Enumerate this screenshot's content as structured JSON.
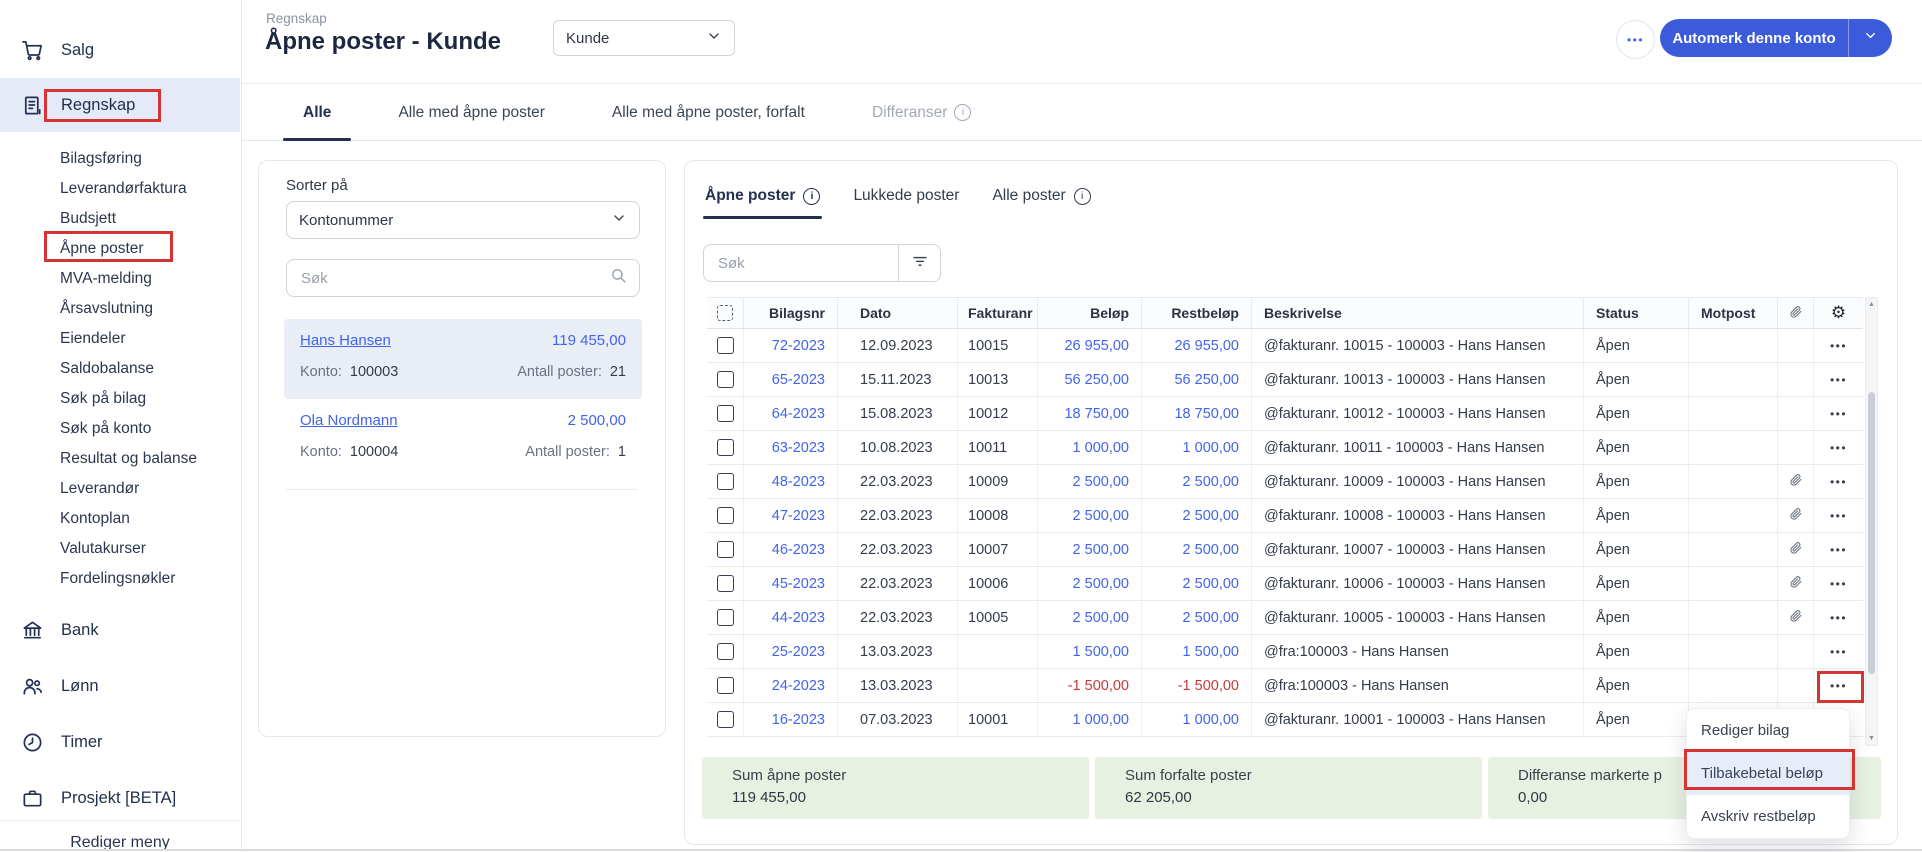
{
  "colors": {
    "accent": "#4263eb",
    "primary_button": "#3b5bdb",
    "navy": "#24304f",
    "annotation": "#d63333",
    "negative": "#c43b3b",
    "summary_bg": "#e7f1e2",
    "selected_bg": "#e9edf6",
    "active_nav_bg": "#e5eaf8",
    "menu_highlight": "#e7ecf9"
  },
  "icons": {
    "dots": "•••",
    "gear": "⚙",
    "up": "▲",
    "down": "▼",
    "info": "i"
  },
  "sidebar": {
    "items": [
      {
        "label": "Salg",
        "icon": "cart",
        "type": "main"
      },
      {
        "label": "Regnskap",
        "icon": "ledger",
        "type": "main",
        "active": true
      },
      {
        "label": "Bilagsføring",
        "type": "sub"
      },
      {
        "label": "Leverandørfaktura",
        "type": "sub"
      },
      {
        "label": "Budsjett",
        "type": "sub"
      },
      {
        "label": "Åpne poster",
        "type": "sub"
      },
      {
        "label": "MVA-melding",
        "type": "sub"
      },
      {
        "label": "Årsavslutning",
        "type": "sub"
      },
      {
        "label": "Eiendeler",
        "type": "sub"
      },
      {
        "label": "Saldobalanse",
        "type": "sub"
      },
      {
        "label": "Søk på bilag",
        "type": "sub"
      },
      {
        "label": "Søk på konto",
        "type": "sub"
      },
      {
        "label": "Resultat og balanse",
        "type": "sub"
      },
      {
        "label": "Leverandør",
        "type": "sub"
      },
      {
        "label": "Kontoplan",
        "type": "sub"
      },
      {
        "label": "Valutakurser",
        "type": "sub"
      },
      {
        "label": "Fordelingsnøkler",
        "type": "sub"
      },
      {
        "label": "Bank",
        "icon": "bank",
        "type": "main"
      },
      {
        "label": "Lønn",
        "icon": "people",
        "type": "main"
      },
      {
        "label": "Timer",
        "icon": "clock",
        "type": "main"
      },
      {
        "label": "Prosjekt [BETA]",
        "icon": "briefcase",
        "type": "main"
      }
    ],
    "footer_label": "Rediger meny"
  },
  "header": {
    "breadcrumb": "Regnskap",
    "title": "Åpne poster - Kunde",
    "entity_select": "Kunde",
    "primary_button": "Automerk denne konto"
  },
  "view_tabs": [
    {
      "label": "Alle",
      "active": true
    },
    {
      "label": "Alle med åpne poster"
    },
    {
      "label": "Alle med åpne poster, forfalt"
    },
    {
      "label": "Differanser",
      "info": true,
      "disabled": true
    }
  ],
  "left_panel": {
    "sort_label": "Sorter på",
    "sort_value": "Kontonummer",
    "search_placeholder": "Søk",
    "konto_label": "Konto:",
    "poster_label": "Antall poster:",
    "customers": [
      {
        "name": "Hans Hansen",
        "amount": "119 455,00",
        "konto": "100003",
        "poster": "21",
        "selected": true
      },
      {
        "name": "Ola Nordmann",
        "amount": "2 500,00",
        "konto": "100004",
        "poster": "1",
        "selected": false
      }
    ]
  },
  "right_panel": {
    "tabs": [
      {
        "label": "Åpne poster",
        "info": true,
        "active": true
      },
      {
        "label": "Lukkede poster"
      },
      {
        "label": "Alle poster",
        "info": true
      }
    ],
    "search_placeholder": "Søk",
    "table": {
      "columns": [
        "",
        "Bilagsnr",
        "Dato",
        "Fakturanr",
        "Beløp",
        "Restbeløp",
        "Beskrivelse",
        "Status",
        "Motpost",
        "",
        ""
      ],
      "rows": [
        {
          "bilagsnr": "72-2023",
          "dato": "12.09.2023",
          "fakturanr": "10015",
          "belop": "26 955,00",
          "restbelop": "26 955,00",
          "beskrivelse": "@fakturanr. 10015 - 100003 - Hans Hansen",
          "status": "Åpen",
          "attachment": false,
          "negative": false
        },
        {
          "bilagsnr": "65-2023",
          "dato": "15.11.2023",
          "fakturanr": "10013",
          "belop": "56 250,00",
          "restbelop": "56 250,00",
          "beskrivelse": "@fakturanr. 10013 - 100003 - Hans Hansen",
          "status": "Åpen",
          "attachment": false,
          "negative": false
        },
        {
          "bilagsnr": "64-2023",
          "dato": "15.08.2023",
          "fakturanr": "10012",
          "belop": "18 750,00",
          "restbelop": "18 750,00",
          "beskrivelse": "@fakturanr. 10012 - 100003 - Hans Hansen",
          "status": "Åpen",
          "attachment": false,
          "negative": false
        },
        {
          "bilagsnr": "63-2023",
          "dato": "10.08.2023",
          "fakturanr": "10011",
          "belop": "1 000,00",
          "restbelop": "1 000,00",
          "beskrivelse": "@fakturanr. 10011 - 100003 - Hans Hansen",
          "status": "Åpen",
          "attachment": false,
          "negative": false
        },
        {
          "bilagsnr": "48-2023",
          "dato": "22.03.2023",
          "fakturanr": "10009",
          "belop": "2 500,00",
          "restbelop": "2 500,00",
          "beskrivelse": "@fakturanr. 10009 - 100003 - Hans Hansen",
          "status": "Åpen",
          "attachment": true,
          "negative": false
        },
        {
          "bilagsnr": "47-2023",
          "dato": "22.03.2023",
          "fakturanr": "10008",
          "belop": "2 500,00",
          "restbelop": "2 500,00",
          "beskrivelse": "@fakturanr. 10008 - 100003 - Hans Hansen",
          "status": "Åpen",
          "attachment": true,
          "negative": false
        },
        {
          "bilagsnr": "46-2023",
          "dato": "22.03.2023",
          "fakturanr": "10007",
          "belop": "2 500,00",
          "restbelop": "2 500,00",
          "beskrivelse": "@fakturanr. 10007 - 100003 - Hans Hansen",
          "status": "Åpen",
          "attachment": true,
          "negative": false
        },
        {
          "bilagsnr": "45-2023",
          "dato": "22.03.2023",
          "fakturanr": "10006",
          "belop": "2 500,00",
          "restbelop": "2 500,00",
          "beskrivelse": "@fakturanr. 10006 - 100003 - Hans Hansen",
          "status": "Åpen",
          "attachment": true,
          "negative": false
        },
        {
          "bilagsnr": "44-2023",
          "dato": "22.03.2023",
          "fakturanr": "10005",
          "belop": "2 500,00",
          "restbelop": "2 500,00",
          "beskrivelse": "@fakturanr. 10005 - 100003 - Hans Hansen",
          "status": "Åpen",
          "attachment": true,
          "negative": false
        },
        {
          "bilagsnr": "25-2023",
          "dato": "13.03.2023",
          "fakturanr": "",
          "belop": "1 500,00",
          "restbelop": "1 500,00",
          "beskrivelse": "@fra:100003 - Hans Hansen",
          "status": "Åpen",
          "attachment": false,
          "negative": false
        },
        {
          "bilagsnr": "24-2023",
          "dato": "13.03.2023",
          "fakturanr": "",
          "belop": "-1 500,00",
          "restbelop": "-1 500,00",
          "beskrivelse": "@fra:100003 - Hans Hansen",
          "status": "Åpen",
          "attachment": false,
          "negative": true
        },
        {
          "bilagsnr": "16-2023",
          "dato": "07.03.2023",
          "fakturanr": "10001",
          "belop": "1 000,00",
          "restbelop": "1 000,00",
          "beskrivelse": "@fakturanr. 10001 - 100003 - Hans Hansen",
          "status": "Åpen",
          "attachment": false,
          "negative": false
        }
      ]
    }
  },
  "summary": {
    "cells": [
      {
        "label": "Sum åpne poster",
        "value": "119 455,00"
      },
      {
        "label": "Sum forfalte poster",
        "value": "62 205,00"
      },
      {
        "label": "Differanse markerte p",
        "value": "0,00"
      }
    ]
  },
  "context_menu": {
    "items": [
      {
        "label": "Rediger bilag",
        "highlighted": false
      },
      {
        "label": "Tilbakebetal beløp",
        "highlighted": true
      },
      {
        "label": "Avskriv restbeløp",
        "highlighted": false
      }
    ]
  }
}
